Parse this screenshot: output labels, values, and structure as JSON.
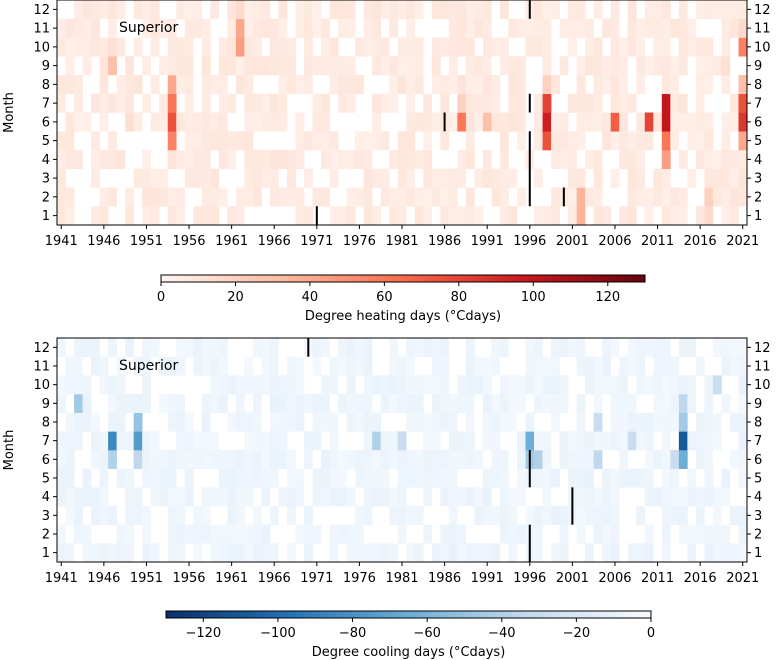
{
  "chart_data": [
    {
      "type": "heatmap",
      "panel": "top",
      "annotation": "Superior",
      "ylabel": "Month",
      "y_ticks": [
        "1",
        "2",
        "3",
        "4",
        "5",
        "6",
        "7",
        "8",
        "9",
        "10",
        "11",
        "12"
      ],
      "x_ticks": [
        "1941",
        "1946",
        "1951",
        "1956",
        "1961",
        "1966",
        "1971",
        "1976",
        "1981",
        "1986",
        "1991",
        "1996",
        "2001",
        "2006",
        "2011",
        "2016",
        "2021"
      ],
      "xlim": [
        1941,
        2021
      ],
      "colorbar": {
        "label": "Degree heating days (°Cdays)",
        "ticks": [
          "0",
          "20",
          "40",
          "60",
          "80",
          "100",
          "120"
        ],
        "range": [
          0,
          130
        ],
        "colormap": [
          "#fff5f0",
          "#fcbba1",
          "#fb6a4a",
          "#cb181d",
          "#67000d"
        ]
      },
      "cells": [
        [
          1947,
          9,
          30
        ],
        [
          1947,
          10,
          12
        ],
        [
          1949,
          6,
          12
        ],
        [
          1949,
          7,
          8
        ],
        [
          1954,
          5,
          55
        ],
        [
          1954,
          6,
          75
        ],
        [
          1954,
          7,
          60
        ],
        [
          1954,
          8,
          40
        ],
        [
          1954,
          4,
          10
        ],
        [
          1962,
          10,
          45
        ],
        [
          1962,
          11,
          40
        ],
        [
          1962,
          12,
          15
        ],
        [
          1988,
          6,
          60
        ],
        [
          1988,
          7,
          20
        ],
        [
          1991,
          6,
          30
        ],
        [
          1998,
          5,
          75
        ],
        [
          1998,
          6,
          95
        ],
        [
          1998,
          7,
          80
        ],
        [
          1998,
          8,
          20
        ],
        [
          2002,
          1,
          35
        ],
        [
          2002,
          2,
          35
        ],
        [
          2006,
          6,
          70
        ],
        [
          2010,
          6,
          80
        ],
        [
          2012,
          4,
          45
        ],
        [
          2012,
          5,
          60
        ],
        [
          2012,
          6,
          100
        ],
        [
          2012,
          7,
          100
        ],
        [
          2017,
          1,
          15
        ],
        [
          2017,
          2,
          20
        ],
        [
          2019,
          9,
          12
        ],
        [
          2021,
          5,
          40
        ],
        [
          2021,
          6,
          85
        ],
        [
          2021,
          7,
          75
        ],
        [
          2021,
          8,
          30
        ],
        [
          2021,
          10,
          55
        ],
        [
          2021,
          11,
          15
        ]
      ],
      "black_marks": [
        [
          1971,
          1,
          1
        ],
        [
          1986,
          6,
          6
        ],
        [
          1996,
          2,
          5
        ],
        [
          1996,
          7,
          7
        ],
        [
          1996,
          12,
          12
        ],
        [
          2000,
          2,
          2
        ]
      ]
    },
    {
      "type": "heatmap",
      "panel": "bottom",
      "annotation": "Superior",
      "ylabel": "Month",
      "y_ticks": [
        "1",
        "2",
        "3",
        "4",
        "5",
        "6",
        "7",
        "8",
        "9",
        "10",
        "11",
        "12"
      ],
      "x_ticks": [
        "1941",
        "1946",
        "1951",
        "1956",
        "1961",
        "1966",
        "1971",
        "1976",
        "1981",
        "1986",
        "1991",
        "1996",
        "2001",
        "2006",
        "2011",
        "2016",
        "2021"
      ],
      "xlim": [
        1941,
        2021
      ],
      "colorbar": {
        "label": "Degree cooling days (°Cdays)",
        "ticks": [
          "−120",
          "−100",
          "−80",
          "−60",
          "−40",
          "−20",
          "0"
        ],
        "range": [
          -130,
          0
        ],
        "colormap": [
          "#f7fbff",
          "#c6dbef",
          "#6baed6",
          "#2171b5",
          "#08306b"
        ]
      },
      "cells": [
        [
          1943,
          9,
          45
        ],
        [
          1947,
          7,
          85
        ],
        [
          1947,
          6,
          40
        ],
        [
          1950,
          7,
          75
        ],
        [
          1950,
          8,
          50
        ],
        [
          1950,
          6,
          35
        ],
        [
          1978,
          7,
          40
        ],
        [
          1981,
          7,
          30
        ],
        [
          1996,
          7,
          65
        ],
        [
          1996,
          6,
          45
        ],
        [
          1997,
          6,
          40
        ],
        [
          2004,
          6,
          35
        ],
        [
          2004,
          8,
          30
        ],
        [
          2008,
          7,
          30
        ],
        [
          2013,
          6,
          30
        ],
        [
          2014,
          7,
          110
        ],
        [
          2014,
          6,
          65
        ],
        [
          2014,
          8,
          45
        ],
        [
          2014,
          9,
          35
        ],
        [
          2018,
          10,
          30
        ]
      ],
      "black_marks": [
        [
          1970,
          12,
          12
        ],
        [
          1996,
          1,
          2
        ],
        [
          1996,
          5,
          6
        ],
        [
          2001,
          3,
          4
        ]
      ]
    }
  ]
}
